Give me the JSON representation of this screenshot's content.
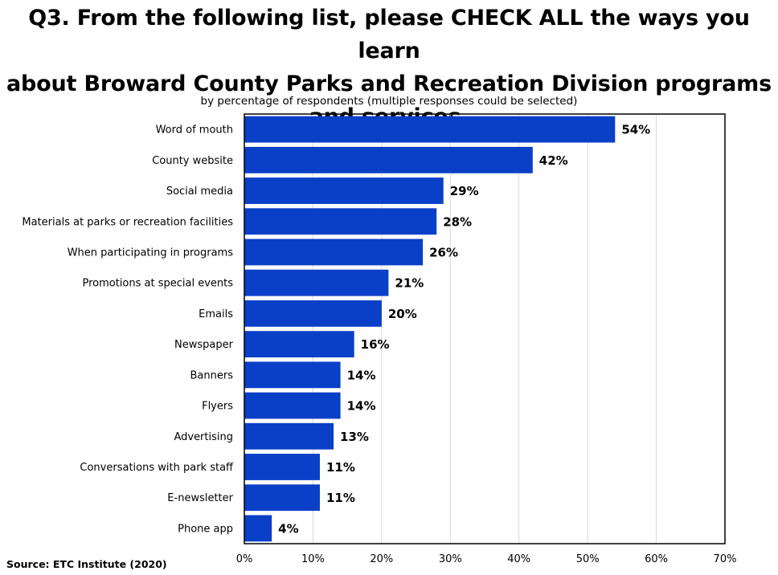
{
  "chart_data": {
    "type": "bar",
    "orientation": "horizontal",
    "title_lines": [
      "Q3. From the following list, please CHECK ALL the ways you learn",
      "about Broward County Parks and Recreation Division programs",
      "and services."
    ],
    "subtitle": "by percentage of respondents (multiple responses could be selected)",
    "categories": [
      "Word of mouth",
      "County website",
      "Social media",
      "Materials at parks or recreation facilities",
      "When participating in programs",
      "Promotions at special events",
      "Emails",
      "Newspaper",
      "Banners",
      "Flyers",
      "Advertising",
      "Conversations with park staff",
      "E-newsletter",
      "Phone app"
    ],
    "values": [
      54,
      42,
      29,
      28,
      26,
      21,
      20,
      16,
      14,
      14,
      13,
      11,
      11,
      4
    ],
    "data_labels": [
      "54%",
      "42%",
      "29%",
      "28%",
      "26%",
      "21%",
      "20%",
      "16%",
      "14%",
      "14%",
      "13%",
      "11%",
      "11%",
      "4%"
    ],
    "xlim": [
      0,
      70
    ],
    "xticks": [
      0,
      10,
      20,
      30,
      40,
      50,
      60,
      70
    ],
    "xtick_labels": [
      "0%",
      "10%",
      "20%",
      "30%",
      "40%",
      "50%",
      "60%",
      "70%"
    ],
    "xlabel": "",
    "ylabel": "",
    "grid": true,
    "bar_color": "#0a3fc7",
    "source": "Source:  ETC Institute (2020)"
  }
}
